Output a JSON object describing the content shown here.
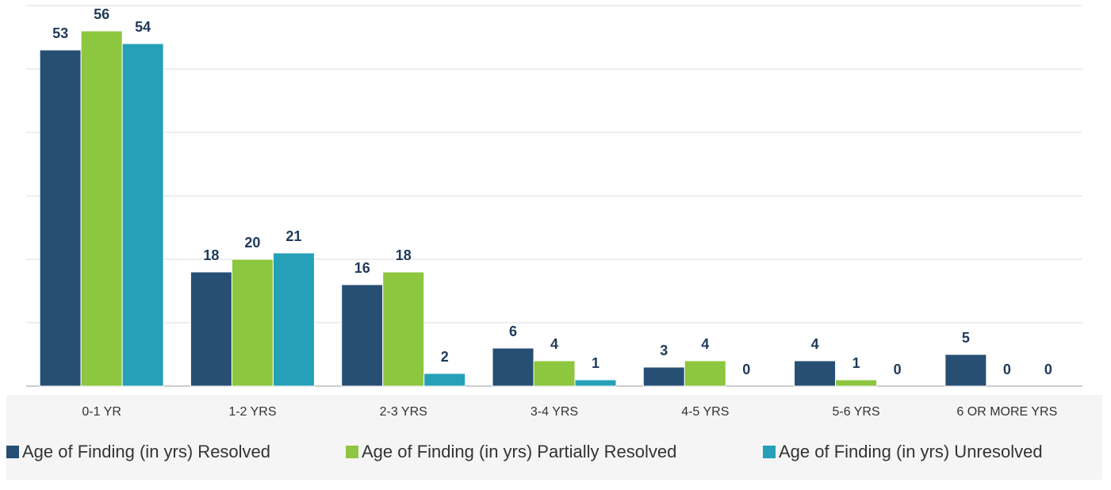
{
  "chart_data": {
    "type": "bar",
    "categories": [
      "0-1 YR",
      "1-2 YRS",
      "2-3 YRS",
      "3-4 YRS",
      "4-5 YRS",
      "5-6 YRS",
      "6 OR MORE YRS"
    ],
    "series": [
      {
        "name": "Age of Finding (in yrs) Resolved",
        "color": "#264f73",
        "values": [
          53,
          18,
          16,
          6,
          3,
          4,
          5
        ]
      },
      {
        "name": "Age of Finding (in yrs) Partially Resolved",
        "color": "#8dc63f",
        "values": [
          56,
          20,
          18,
          4,
          4,
          1,
          0
        ]
      },
      {
        "name": "Age of Finding (in yrs) Unresolved",
        "color": "#26a0b9",
        "values": [
          54,
          21,
          2,
          1,
          0,
          0,
          0
        ]
      }
    ],
    "ylim": [
      0,
      60
    ],
    "yticks": [
      0,
      10,
      20,
      30,
      40,
      50,
      60
    ],
    "grid": true,
    "legend": "bottom"
  }
}
